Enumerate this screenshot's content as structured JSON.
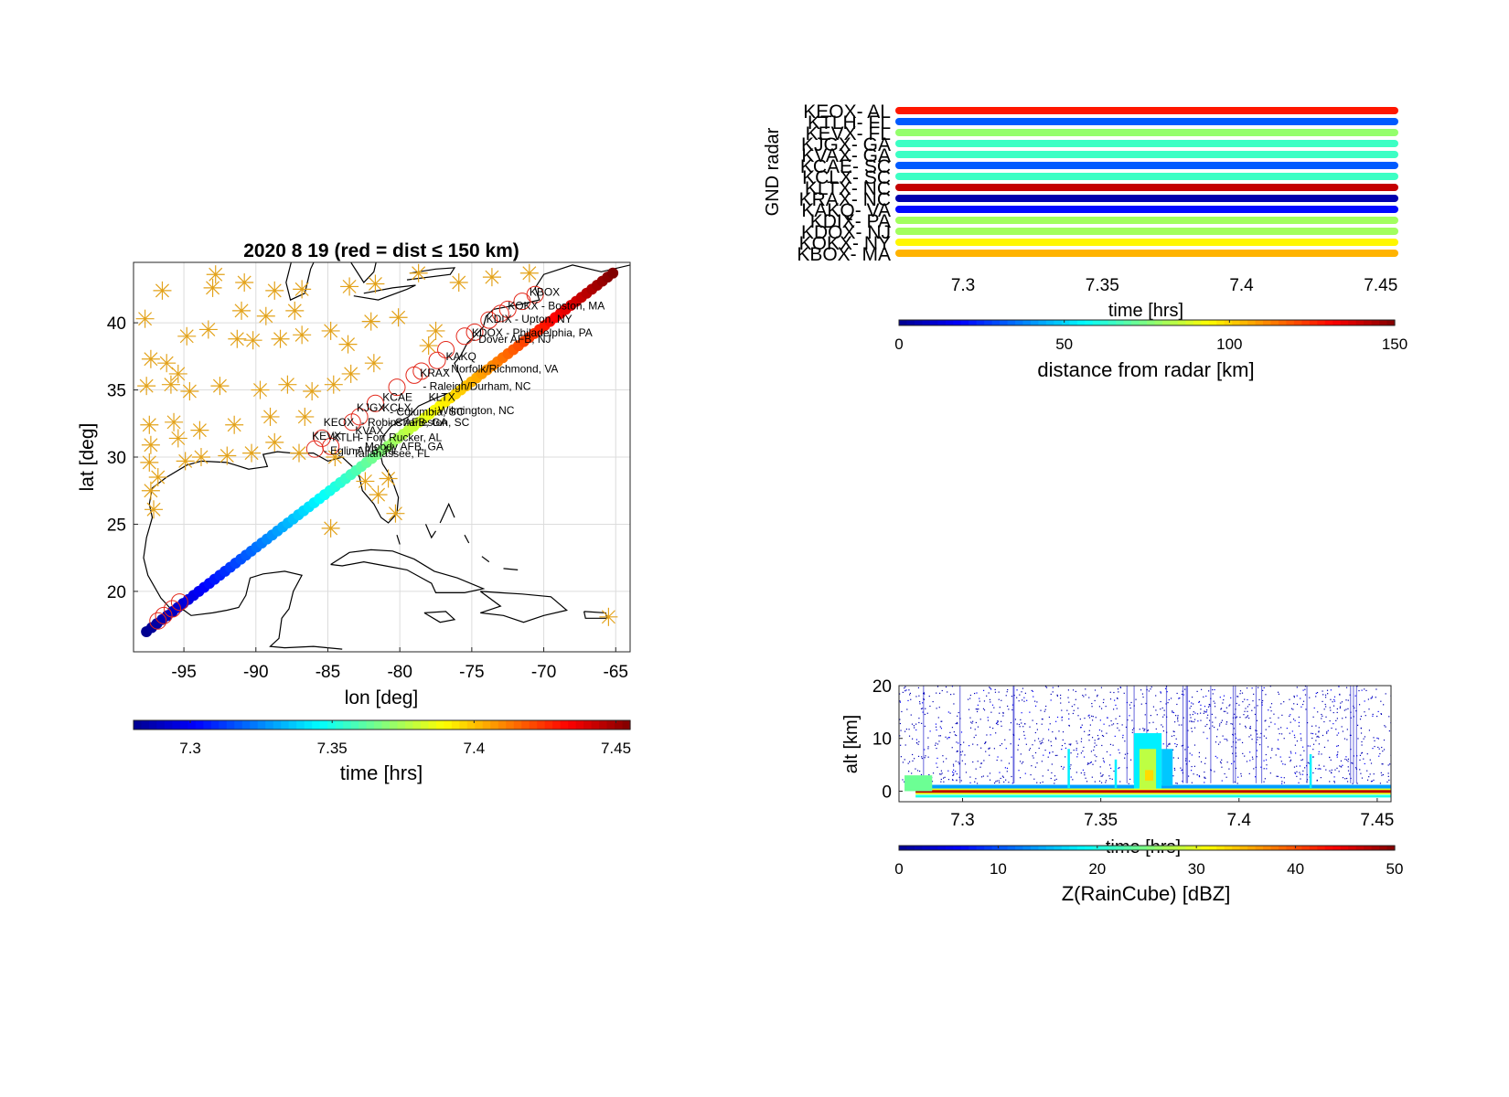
{
  "colormap": [
    "#00008f",
    "#0000ff",
    "#0080ff",
    "#00ffff",
    "#80ff80",
    "#ffff00",
    "#ff8000",
    "#ff0000",
    "#800000"
  ],
  "marker_color": "#e3a21a",
  "circle_color": "#e3271a",
  "chart_data": [
    {
      "id": "map",
      "type": "scatter",
      "title": "2020    8    19  (red = dist ≤ 150 km)",
      "xlabel": "lon  [deg]",
      "ylabel": "lat  [deg]",
      "xlim": [
        -98.5,
        -64
      ],
      "ylim": [
        15.5,
        44.5
      ],
      "xticks": [
        -95,
        -90,
        -85,
        -80,
        -75,
        -70,
        -65
      ],
      "yticks": [
        20,
        25,
        30,
        35,
        40
      ],
      "grid": true,
      "colorbar": {
        "label": "time  [hrs]",
        "range": [
          7.28,
          7.455
        ],
        "ticks": [
          7.3,
          7.35,
          7.4,
          7.45
        ]
      },
      "track": {
        "start": [
          -97.6,
          17.0
        ],
        "end": [
          -65.2,
          43.7
        ],
        "time_range": [
          7.28,
          7.455
        ]
      },
      "overpass_circles": [
        [
          -96.8,
          17.8
        ],
        [
          -96.4,
          18.2
        ],
        [
          -95.8,
          18.7
        ],
        [
          -95.3,
          19.2
        ],
        [
          -85.9,
          30.6
        ],
        [
          -84.8,
          30.8
        ],
        [
          -85.4,
          31.4
        ],
        [
          -83.3,
          32.6
        ],
        [
          -82.8,
          33.0
        ],
        [
          -81.7,
          34.0
        ],
        [
          -80.2,
          35.2
        ],
        [
          -79.0,
          36.1
        ],
        [
          -78.5,
          36.4
        ],
        [
          -77.4,
          37.2
        ],
        [
          -76.8,
          38.0
        ],
        [
          -75.5,
          39.0
        ],
        [
          -74.8,
          39.3
        ],
        [
          -73.8,
          40.2
        ],
        [
          -73.0,
          40.7
        ],
        [
          -72.5,
          41.0
        ],
        [
          -71.5,
          41.6
        ],
        [
          -70.6,
          42.1
        ]
      ],
      "radar_sites": [
        [
          -97.7,
          40.3
        ],
        [
          -96.5,
          42.4
        ],
        [
          -92.8,
          43.6
        ],
        [
          -90.8,
          43.0
        ],
        [
          -88.7,
          42.4
        ],
        [
          -86.8,
          42.5
        ],
        [
          -83.5,
          42.7
        ],
        [
          -81.7,
          42.9
        ],
        [
          -78.7,
          43.7
        ],
        [
          -75.9,
          43.0
        ],
        [
          -73.6,
          43.4
        ],
        [
          -71.0,
          43.7
        ],
        [
          -97.3,
          37.3
        ],
        [
          -96.2,
          37.0
        ],
        [
          -95.4,
          36.2
        ],
        [
          -95.9,
          35.4
        ],
        [
          -94.8,
          39.0
        ],
        [
          -93.3,
          39.5
        ],
        [
          -91.3,
          38.8
        ],
        [
          -90.2,
          38.7
        ],
        [
          -88.3,
          38.8
        ],
        [
          -86.8,
          39.1
        ],
        [
          -84.8,
          39.4
        ],
        [
          -83.6,
          38.4
        ],
        [
          -82.0,
          40.1
        ],
        [
          -80.1,
          40.4
        ],
        [
          -78.0,
          38.3
        ],
        [
          -77.5,
          39.4
        ],
        [
          -97.6,
          35.3
        ],
        [
          -94.6,
          34.9
        ],
        [
          -92.5,
          35.3
        ],
        [
          -89.7,
          35.0
        ],
        [
          -87.8,
          35.4
        ],
        [
          -86.1,
          34.9
        ],
        [
          -84.6,
          35.4
        ],
        [
          -83.4,
          36.2
        ],
        [
          -81.8,
          37.0
        ],
        [
          -97.4,
          32.4
        ],
        [
          -95.7,
          32.6
        ],
        [
          -93.9,
          32.0
        ],
        [
          -91.5,
          32.4
        ],
        [
          -89.0,
          33.0
        ],
        [
          -86.6,
          33.0
        ],
        [
          -97.4,
          29.6
        ],
        [
          -96.8,
          28.5
        ],
        [
          -97.3,
          27.5
        ],
        [
          -97.1,
          26.1
        ],
        [
          -94.9,
          29.7
        ],
        [
          -93.8,
          30.0
        ],
        [
          -92.0,
          30.1
        ],
        [
          -90.3,
          30.3
        ],
        [
          -88.7,
          31.1
        ],
        [
          -87.0,
          30.3
        ],
        [
          -84.5,
          30.0
        ],
        [
          -82.4,
          28.2
        ],
        [
          -81.5,
          27.2
        ],
        [
          -80.8,
          28.4
        ],
        [
          -80.3,
          25.8
        ],
        [
          -84.8,
          24.7
        ],
        [
          -97.3,
          30.9
        ],
        [
          -95.4,
          31.4
        ],
        [
          -65.5,
          18.1
        ],
        [
          -93.0,
          42.6
        ],
        [
          -91.0,
          40.9
        ],
        [
          -89.3,
          40.5
        ],
        [
          -87.3,
          40.9
        ]
      ],
      "site_labels": [
        {
          "text": "KBOX",
          "lon": -71.0,
          "lat": 42.0
        },
        {
          "text": "KOKX - Boston, MA",
          "lon": -72.5,
          "lat": 41.0
        },
        {
          "text": "KDIX - Upton, NY",
          "lon": -74.0,
          "lat": 40.0
        },
        {
          "text": "KDOX - Philadelphia, PA",
          "lon": -75.0,
          "lat": 39.0
        },
        {
          "text": "- Dover AFB, NJ",
          "lon": -75.0,
          "lat": 38.5
        },
        {
          "text": "KAKQ",
          "lon": -76.8,
          "lat": 37.2
        },
        {
          "text": "- Norfolk/Richmond, VA",
          "lon": -76.9,
          "lat": 36.3
        },
        {
          "text": "KRAX",
          "lon": -78.6,
          "lat": 36.0
        },
        {
          "text": "- Raleigh/Durham, NC",
          "lon": -78.4,
          "lat": 35.0
        },
        {
          "text": "KCAE",
          "lon": -81.2,
          "lat": 34.2
        },
        {
          "text": "KLTX",
          "lon": -78.0,
          "lat": 34.2
        },
        {
          "text": "- Columbia, SC",
          "lon": -80.7,
          "lat": 33.1
        },
        {
          "text": "- Wilmington, NC",
          "lon": -77.8,
          "lat": 33.2
        },
        {
          "text": "KJGX",
          "lon": -83.0,
          "lat": 33.4
        },
        {
          "text": "KCLX",
          "lon": -81.2,
          "lat": 33.4
        },
        {
          "text": "KEOX",
          "lon": -85.3,
          "lat": 32.3
        },
        {
          "text": "- Robins AFB, GA",
          "lon": -82.7,
          "lat": 32.3
        },
        {
          "text": "- Charleston, SC",
          "lon": -80.8,
          "lat": 32.3
        },
        {
          "text": "KVAX",
          "lon": -83.1,
          "lat": 31.7
        },
        {
          "text": "KEVX",
          "lon": -86.1,
          "lat": 31.3
        },
        {
          "text": "KTLH",
          "lon": -84.7,
          "lat": 31.2
        },
        {
          "text": "- Fort Rucker, AL",
          "lon": -82.8,
          "lat": 31.2
        },
        {
          "text": "- Moody AFB, GA",
          "lon": -82.9,
          "lat": 30.5
        },
        {
          "text": "- Eglin AFB, FL",
          "lon": -85.3,
          "lat": 30.2
        },
        {
          "text": "- Tallahassee, FL",
          "lon": -83.7,
          "lat": 30.0
        }
      ],
      "coastlines": [
        [
          [
            -64,
            44.3
          ],
          [
            -66,
            43.8
          ],
          [
            -68,
            44.3
          ],
          [
            -70,
            43.6
          ],
          [
            -70.6,
            42.6
          ],
          [
            -70.3,
            41.7
          ],
          [
            -71.5,
            41.4
          ],
          [
            -73.5,
            41.0
          ],
          [
            -74.0,
            40.5
          ],
          [
            -74.2,
            39.7
          ],
          [
            -74.9,
            38.9
          ],
          [
            -75.3,
            38.5
          ],
          [
            -75.8,
            37.5
          ],
          [
            -76.2,
            37.0
          ],
          [
            -75.8,
            36.0
          ],
          [
            -75.5,
            35.2
          ],
          [
            -76.5,
            34.8
          ],
          [
            -77.5,
            34.4
          ],
          [
            -78.7,
            33.8
          ],
          [
            -79.4,
            33.0
          ],
          [
            -80.6,
            32.3
          ],
          [
            -81.2,
            31.5
          ],
          [
            -81.4,
            30.5
          ],
          [
            -81.2,
            29.5
          ],
          [
            -80.6,
            28.5
          ],
          [
            -80.1,
            27.0
          ],
          [
            -80.2,
            25.8
          ],
          [
            -80.8,
            25.1
          ],
          [
            -81.3,
            25.5
          ],
          [
            -81.8,
            26.5
          ],
          [
            -82.6,
            27.5
          ],
          [
            -82.8,
            28.5
          ],
          [
            -83.2,
            29.2
          ],
          [
            -84.0,
            30.0
          ],
          [
            -85.0,
            29.7
          ],
          [
            -86.0,
            30.3
          ],
          [
            -87.5,
            30.3
          ],
          [
            -88.5,
            30.4
          ],
          [
            -89.5,
            30.2
          ],
          [
            -89.2,
            29.3
          ],
          [
            -90.5,
            29.1
          ],
          [
            -92.0,
            29.6
          ],
          [
            -93.8,
            29.7
          ],
          [
            -94.8,
            29.4
          ],
          [
            -96.2,
            28.5
          ],
          [
            -97.2,
            27.7
          ],
          [
            -97.4,
            26.5
          ],
          [
            -97.2,
            25.5
          ],
          [
            -97.6,
            24.0
          ],
          [
            -97.8,
            22.5
          ],
          [
            -97.5,
            21.2
          ],
          [
            -96.6,
            19.5
          ],
          [
            -96.0,
            18.8
          ],
          [
            -95.0,
            18.6
          ],
          [
            -94.5,
            18.2
          ],
          [
            -93.0,
            18.4
          ],
          [
            -92.0,
            18.6
          ],
          [
            -91.2,
            18.8
          ],
          [
            -90.7,
            19.7
          ],
          [
            -90.4,
            21.0
          ],
          [
            -89.5,
            21.3
          ],
          [
            -88.0,
            21.5
          ],
          [
            -86.8,
            21.2
          ],
          [
            -87.4,
            20.0
          ],
          [
            -87.7,
            18.7
          ],
          [
            -88.2,
            18.0
          ],
          [
            -88.4,
            16.5
          ],
          [
            -89.0,
            15.9
          ],
          [
            -88.0,
            15.8
          ],
          [
            -86.0,
            15.9
          ],
          [
            -84.0,
            15.7
          ]
        ],
        [
          [
            -84.8,
            22.0
          ],
          [
            -83.5,
            22.9
          ],
          [
            -82.0,
            23.1
          ],
          [
            -80.5,
            23.0
          ],
          [
            -79.0,
            22.4
          ],
          [
            -77.6,
            21.5
          ],
          [
            -76.0,
            21.0
          ],
          [
            -74.2,
            20.2
          ],
          [
            -75.5,
            19.9
          ],
          [
            -77.5,
            19.9
          ],
          [
            -77.8,
            20.6
          ],
          [
            -79.5,
            21.6
          ],
          [
            -81.0,
            21.9
          ],
          [
            -82.5,
            22.2
          ],
          [
            -84.0,
            21.9
          ],
          [
            -84.8,
            22.0
          ]
        ],
        [
          [
            -74.4,
            20.0
          ],
          [
            -73.0,
            19.9
          ],
          [
            -71.5,
            19.8
          ],
          [
            -69.5,
            19.6
          ],
          [
            -68.4,
            18.6
          ],
          [
            -70.0,
            18.2
          ],
          [
            -71.4,
            17.7
          ],
          [
            -72.8,
            18.2
          ],
          [
            -74.4,
            18.4
          ],
          [
            -73.0,
            18.9
          ],
          [
            -74.4,
            20.0
          ]
        ],
        [
          [
            -78.3,
            18.4
          ],
          [
            -76.8,
            18.5
          ],
          [
            -76.2,
            17.9
          ],
          [
            -77.2,
            17.7
          ],
          [
            -78.3,
            18.4
          ]
        ],
        [
          [
            -67.2,
            18.5
          ],
          [
            -65.7,
            18.4
          ],
          [
            -65.6,
            18.0
          ],
          [
            -67.1,
            18.0
          ],
          [
            -67.2,
            18.5
          ]
        ],
        [
          [
            -80.2,
            24.2
          ],
          [
            -80.0,
            23.5
          ]
        ],
        [
          [
            -76.2,
            25.5
          ],
          [
            -76.6,
            26.5
          ],
          [
            -77.2,
            25.1
          ]
        ],
        [
          [
            -77.5,
            24.5
          ],
          [
            -77.8,
            24.0
          ],
          [
            -78.2,
            25.0
          ]
        ],
        [
          [
            -75.5,
            24.2
          ],
          [
            -75.2,
            23.6
          ]
        ],
        [
          [
            -74.3,
            22.6
          ],
          [
            -73.8,
            22.2
          ]
        ],
        [
          [
            -72.8,
            21.7
          ],
          [
            -71.8,
            21.6
          ]
        ],
        [
          [
            -83.5,
            46.0
          ],
          [
            -84.6,
            45.3
          ],
          [
            -83.4,
            44.5
          ],
          [
            -82.5,
            43.0
          ],
          [
            -81.8,
            43.8
          ],
          [
            -81.5,
            45.2
          ],
          [
            -82.5,
            46.0
          ]
        ],
        [
          [
            -87.6,
            46.0
          ],
          [
            -87.5,
            44.7
          ],
          [
            -87.9,
            43.0
          ],
          [
            -87.6,
            41.7
          ],
          [
            -86.6,
            42.2
          ],
          [
            -86.2,
            44.0
          ],
          [
            -85.5,
            45.6
          ],
          [
            -84.7,
            45.8
          ]
        ],
        [
          [
            -83.2,
            42.0
          ],
          [
            -81.5,
            41.7
          ],
          [
            -79.5,
            42.5
          ],
          [
            -78.9,
            42.8
          ],
          [
            -80.5,
            42.6
          ],
          [
            -82.5,
            42.2
          ]
        ],
        [
          [
            -79.5,
            43.2
          ],
          [
            -76.5,
            43.6
          ],
          [
            -76.2,
            44.1
          ],
          [
            -77.5,
            44.0
          ],
          [
            -79.3,
            43.7
          ]
        ]
      ]
    },
    {
      "id": "radar",
      "type": "line",
      "ylabel": "GND radar",
      "xlabel": "time [hrs]",
      "xlim": [
        7.277,
        7.455
      ],
      "xticks": [
        7.3,
        7.35,
        7.4,
        7.45
      ],
      "series": [
        {
          "name": "KEOX- AL",
          "distance_km": 128
        },
        {
          "name": "KTLH- FL",
          "distance_km": 32
        },
        {
          "name": "KEVX- FL",
          "distance_km": 78
        },
        {
          "name": "KJGX- GA",
          "distance_km": 65
        },
        {
          "name": "KVAX- GA",
          "distance_km": 65
        },
        {
          "name": "KCAE- SC",
          "distance_km": 32
        },
        {
          "name": "KCLX- SC",
          "distance_km": 65
        },
        {
          "name": "KLTX- NC",
          "distance_km": 140
        },
        {
          "name": "KRAX- NC",
          "distance_km": 5
        },
        {
          "name": "KAKQ- VA",
          "distance_km": 20
        },
        {
          "name": "KDIX- PA",
          "distance_km": 80
        },
        {
          "name": "KDOX- NJ",
          "distance_km": 80
        },
        {
          "name": "KOKX- NY",
          "distance_km": 95
        },
        {
          "name": "KBOX- MA",
          "distance_km": 105
        }
      ],
      "colorbar": {
        "label": "distance from radar [km]",
        "range": [
          0,
          150
        ],
        "ticks": [
          0,
          50,
          100,
          150
        ]
      }
    },
    {
      "id": "raincube",
      "type": "heatmap",
      "ylabel": "alt [km]",
      "xlabel": "time [hrs]",
      "xlim": [
        7.277,
        7.455
      ],
      "ylim": [
        -2,
        20
      ],
      "xticks": [
        7.3,
        7.35,
        7.4,
        7.45
      ],
      "yticks": [
        0,
        10,
        20
      ],
      "colorbar": {
        "label": "Z(RainCube) [dBZ]",
        "range": [
          0,
          50
        ],
        "ticks": [
          0,
          10,
          20,
          30,
          40,
          50
        ]
      }
    }
  ]
}
